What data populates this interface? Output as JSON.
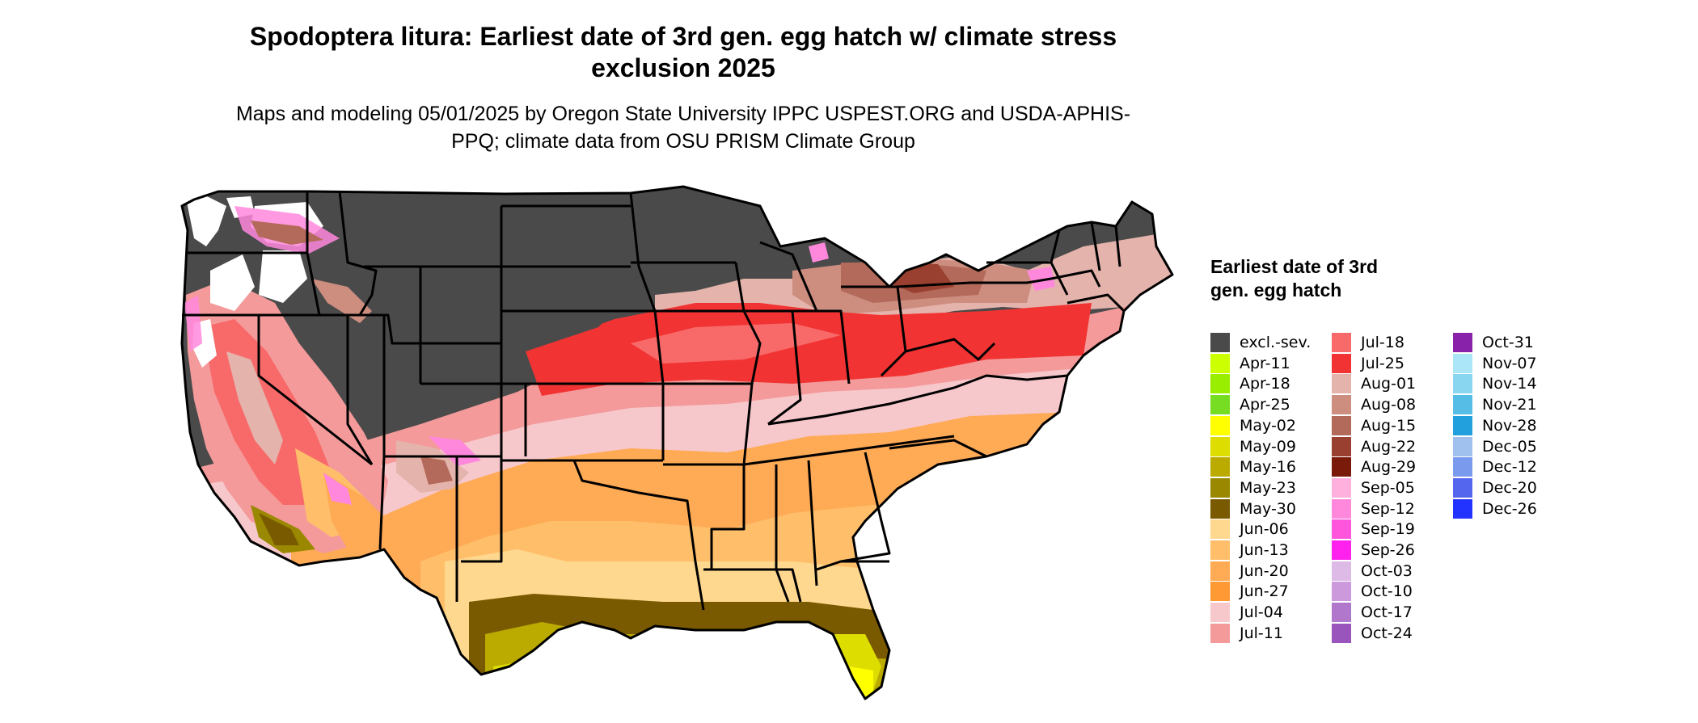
{
  "title": "Spodoptera litura: Earliest date of 3rd gen. egg hatch w/ climate stress exclusion 2025",
  "subtitle": "Maps and modeling 05/01/2025 by Oregon State University IPPC USPEST.ORG and USDA-APHIS-PPQ; climate data from OSU PRISM Climate Group",
  "legend": {
    "title": "Earliest date of 3rd gen. egg hatch",
    "items": [
      {
        "label": "excl.-sev.",
        "color": "#4a4a4a"
      },
      {
        "label": "Apr-11",
        "color": "#ccff00"
      },
      {
        "label": "Apr-18",
        "color": "#99ee00"
      },
      {
        "label": "Apr-25",
        "color": "#77dd22"
      },
      {
        "label": "May-02",
        "color": "#ffff00"
      },
      {
        "label": "May-09",
        "color": "#dddd00"
      },
      {
        "label": "May-16",
        "color": "#bbaa00"
      },
      {
        "label": "May-23",
        "color": "#998800"
      },
      {
        "label": "May-30",
        "color": "#7a5a00"
      },
      {
        "label": "Jun-06",
        "color": "#ffd890"
      },
      {
        "label": "Jun-13",
        "color": "#ffbf6a"
      },
      {
        "label": "Jun-20",
        "color": "#ffaa55"
      },
      {
        "label": "Jun-27",
        "color": "#ff9933"
      },
      {
        "label": "Jul-04",
        "color": "#f6c8cc"
      },
      {
        "label": "Jul-11",
        "color": "#f49a9a"
      },
      {
        "label": "Jul-18",
        "color": "#f86a6a"
      },
      {
        "label": "Jul-25",
        "color": "#f23333"
      },
      {
        "label": "Aug-01",
        "color": "#e4b4ac"
      },
      {
        "label": "Aug-08",
        "color": "#cd8e80"
      },
      {
        "label": "Aug-15",
        "color": "#b46a5a"
      },
      {
        "label": "Aug-22",
        "color": "#9a4030"
      },
      {
        "label": "Aug-29",
        "color": "#7a1a0a"
      },
      {
        "label": "Sep-05",
        "color": "#ffb0dd"
      },
      {
        "label": "Sep-12",
        "color": "#ff88dd"
      },
      {
        "label": "Sep-19",
        "color": "#ff55dd"
      },
      {
        "label": "Sep-26",
        "color": "#ff22ee"
      },
      {
        "label": "Oct-03",
        "color": "#ddbbe6"
      },
      {
        "label": "Oct-10",
        "color": "#cc99dd"
      },
      {
        "label": "Oct-17",
        "color": "#b077cc"
      },
      {
        "label": "Oct-24",
        "color": "#9955bb"
      },
      {
        "label": "Oct-31",
        "color": "#8822aa"
      },
      {
        "label": "Nov-07",
        "color": "#aae6f8"
      },
      {
        "label": "Nov-14",
        "color": "#88d6f0"
      },
      {
        "label": "Nov-21",
        "color": "#55bde6"
      },
      {
        "label": "Nov-28",
        "color": "#22a0dd"
      },
      {
        "label": "Dec-05",
        "color": "#a0c0ee"
      },
      {
        "label": "Dec-12",
        "color": "#7a9aee"
      },
      {
        "label": "Dec-20",
        "color": "#5566ee"
      },
      {
        "label": "Dec-26",
        "color": "#2233ff"
      }
    ]
  }
}
